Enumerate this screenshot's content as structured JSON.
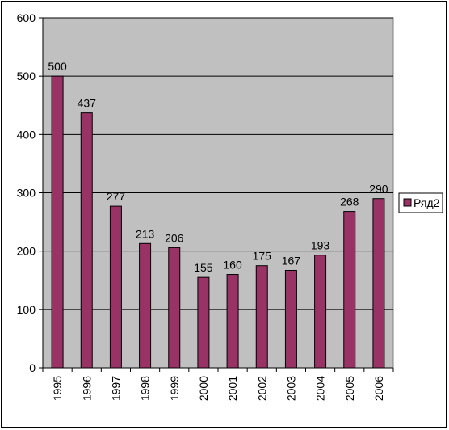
{
  "chart_data": {
    "type": "bar",
    "categories": [
      "1995",
      "1996",
      "1997",
      "1998",
      "1999",
      "2000",
      "2001",
      "2002",
      "2003",
      "2004",
      "2005",
      "2006"
    ],
    "series": [
      {
        "name": "Ряд2",
        "values": [
          500,
          437,
          277,
          213,
          206,
          155,
          160,
          175,
          167,
          193,
          268,
          290
        ],
        "color": "#993366"
      }
    ],
    "yticks": [
      "0",
      "100",
      "200",
      "300",
      "400",
      "500",
      "600"
    ],
    "ylim": [
      0,
      600
    ],
    "grid": true,
    "legend": "right",
    "plot_background": "#c0c0c0",
    "data_labels": true
  }
}
